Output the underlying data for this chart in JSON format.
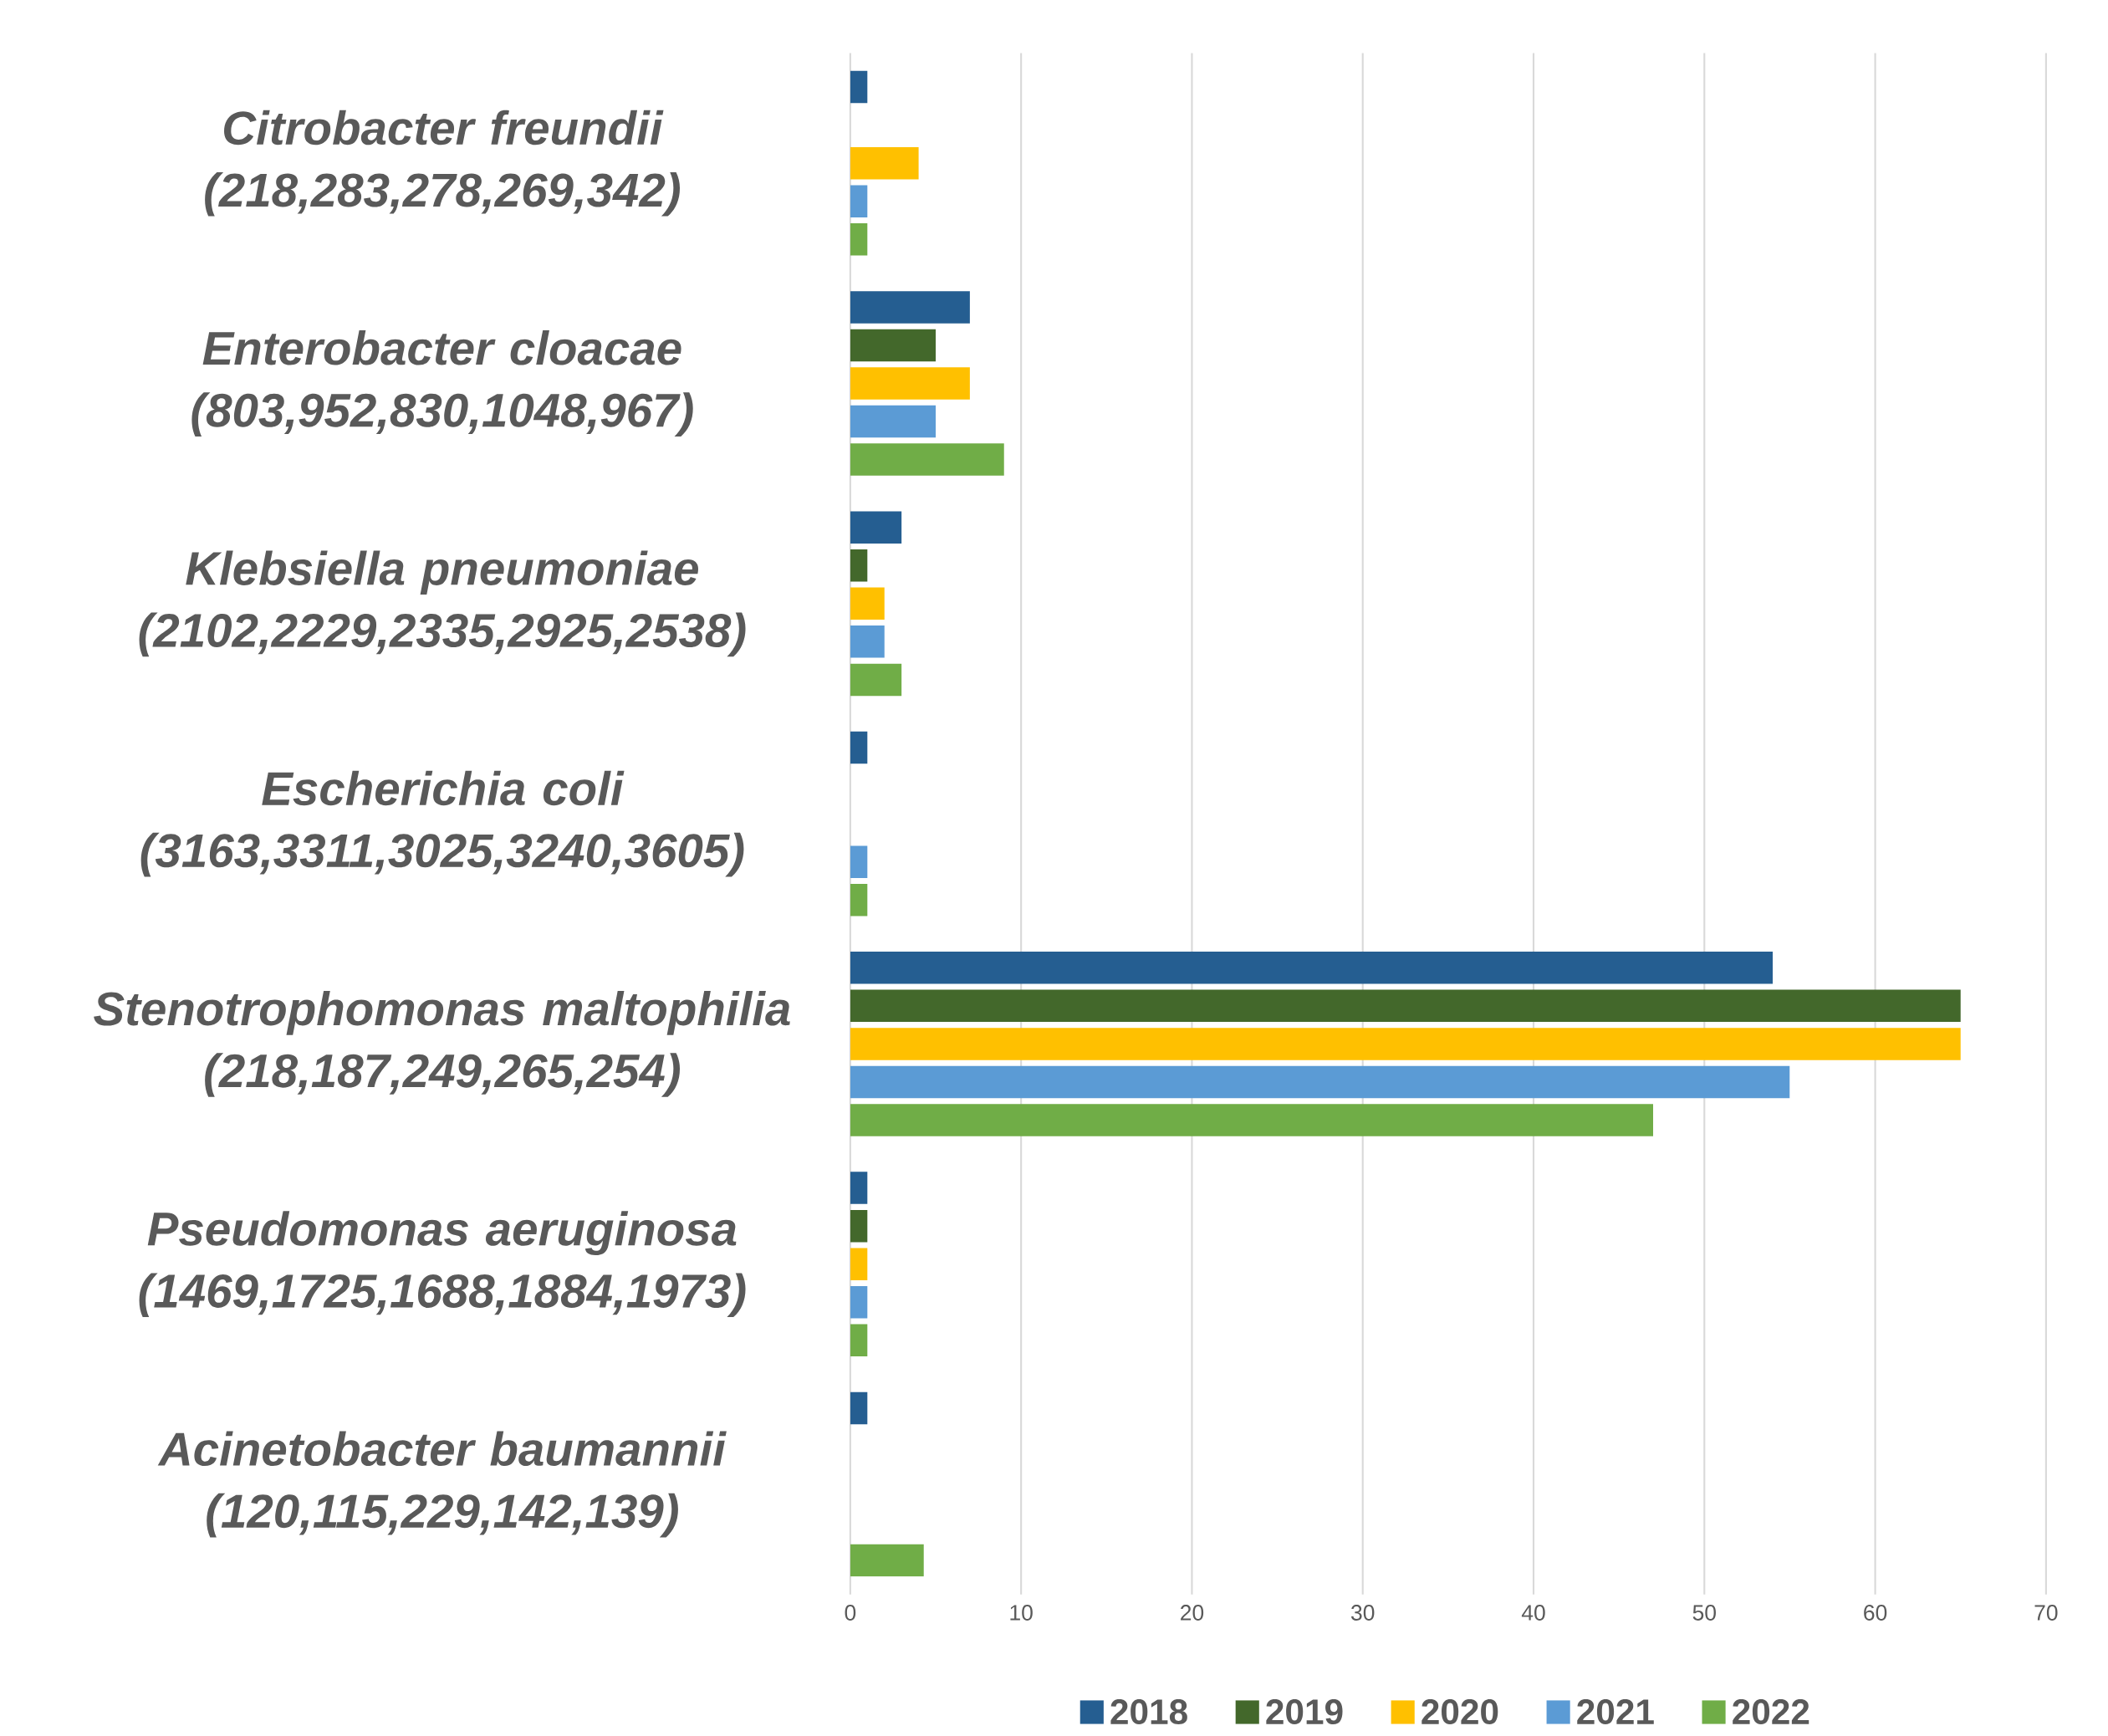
{
  "chart_data": {
    "type": "bar",
    "orientation": "horizontal",
    "categories": [
      "Citrobacter freundii (218,283,278,269,342)",
      "Enterobacter cloacae (803,952,830,1048,967)",
      "Klebsiella pneumoniae (2102,2229,2335,2925,2538)",
      "Escherichia coli (3163,3311,3025,3240,3605)",
      "Stenotrophomonas maltophilia (218,187,249,265,254)",
      "Pseudomonas aeruginosa (1469,1725,1688,1884,1973)",
      "Acinetobacter baumannii (120,115,229,142,139)"
    ],
    "series": [
      {
        "name": "2018",
        "color": "#255e91",
        "values": [
          1,
          7,
          3,
          1,
          54,
          1,
          1
        ]
      },
      {
        "name": "2019",
        "color": "#43682b",
        "values": [
          0,
          5,
          1,
          0,
          65,
          1,
          0
        ]
      },
      {
        "name": "2020",
        "color": "#ffc000",
        "values": [
          4,
          7,
          2,
          0,
          65,
          1,
          0
        ]
      },
      {
        "name": "2021",
        "color": "#5b9bd5",
        "values": [
          1,
          5,
          2,
          1,
          55,
          1,
          0
        ]
      },
      {
        "name": "2022",
        "color": "#70ad47",
        "values": [
          1,
          9,
          3,
          1,
          47,
          1,
          4.3
        ]
      }
    ],
    "xlim": [
      0,
      70
    ],
    "xticks": [
      0,
      10,
      20,
      30,
      40,
      50,
      60,
      70
    ],
    "grid": "x",
    "legend": "bottom"
  }
}
